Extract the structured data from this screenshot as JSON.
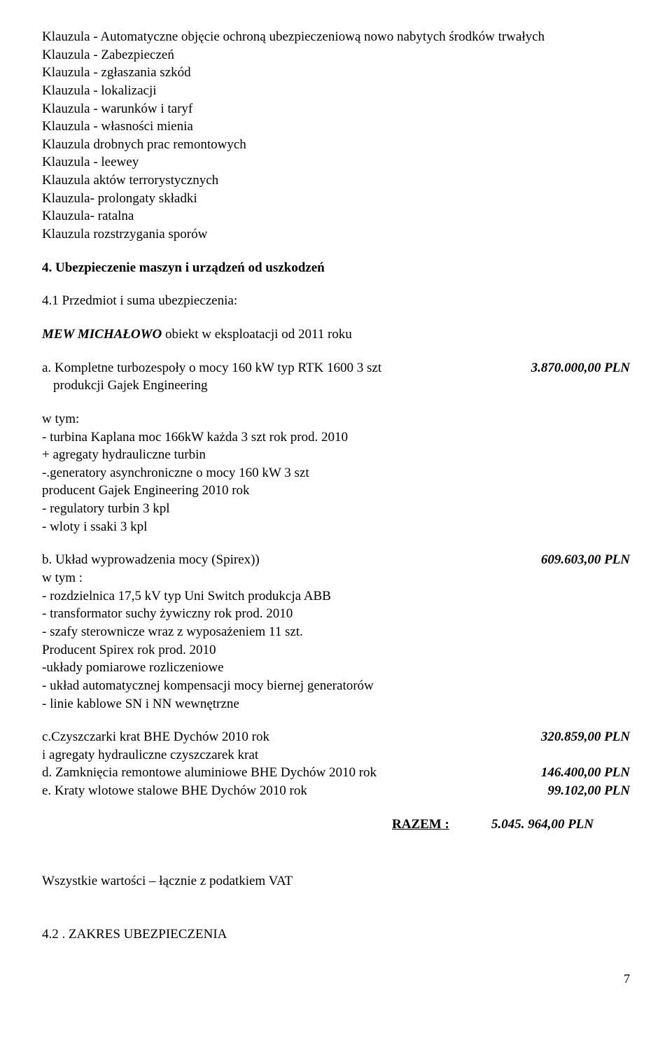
{
  "clauses": [
    "Klauzula  -  Automatyczne objęcie ochroną ubezpieczeniową nowo nabytych środków trwałych",
    "Klauzula  -  Zabezpieczeń",
    "Klauzula -  zgłaszania szkód",
    "Klauzula  - lokalizacji",
    "Klauzula - warunków i taryf",
    "Klauzula - własności mienia",
    "Klauzula drobnych prac remontowych",
    "Klauzula -  leewey",
    "Klauzula aktów terrorystycznych",
    "Klauzula- prolongaty składki",
    "Klauzula-  ratalna",
    "Klauzula rozstrzygania sporów"
  ],
  "section4": {
    "title": "4. Ubezpieczenie maszyn i urządzeń od uszkodzeń",
    "sub41": "4.1 Przedmiot i suma  ubezpieczenia:",
    "mew_line_prefix": "MEW MICHAŁOWO",
    "mew_line_suffix": "    obiekt w eksploatacji od 2011 roku",
    "item_a": {
      "left1": "a. Kompletne turbozespoły  o mocy 160 kW typ RTK 1600   3 szt",
      "right1": "3.870.000,00 PLN",
      "left2": "produkcji Gajek Engineering"
    },
    "wtym1_label": " w tym:",
    "wtym1_lines": [
      "- turbina Kaplana moc 166kW każda   3 szt rok prod. 2010",
      "   + agregaty hydrauliczne turbin",
      "-.generatory asynchroniczne o mocy 160 kW  3 szt",
      "  producent Gajek Engineering       2010 rok",
      " - regulatory turbin 3 kpl",
      "- wloty i ssaki 3 kpl"
    ],
    "item_b": {
      "left": "b. Układ wyprowadzenia mocy    (Spirex))",
      "right": "609.603,00 PLN"
    },
    "wtym2_label": "   w tym :",
    "wtym2_lines": [
      "- rozdzielnica 17,5 kV typ Uni Switch produkcja ABB",
      "- transformator suchy żywiczny   rok prod. 2010",
      "  - szafy sterownicze wraz z wyposażeniem 11 szt.",
      "    Producent Spirex rok prod. 2010",
      "-układy pomiarowe rozliczeniowe",
      "- układ automatycznej kompensacji mocy biernej generatorów",
      "- linie kablowe SN i NN wewnętrzne"
    ],
    "item_c": {
      "left": "c.Czyszczarki krat     BHE Dychów         2010 rok",
      "right": "320.859,00 PLN",
      "left2": "  i agregaty hydrauliczne czyszczarek krat"
    },
    "item_d": {
      "left": "d. Zamknięcia remontowe  aluminiowe   BHE Dychów         2010 rok",
      "right": "146.400,00 PLN"
    },
    "item_e": {
      "left": "e. Kraty wlotowe  stalowe          BHE Dychów         2010 rok",
      "right": "99.102,00 PLN"
    },
    "razem": {
      "label": "RAZEM :",
      "value": "5.045. 964,00  PLN"
    },
    "vat_note": "Wszystkie wartości – łącznie z podatkiem VAT",
    "sub42": "4.2 . ZAKRES UBEZPIECZENIA"
  },
  "pagenum": "7"
}
